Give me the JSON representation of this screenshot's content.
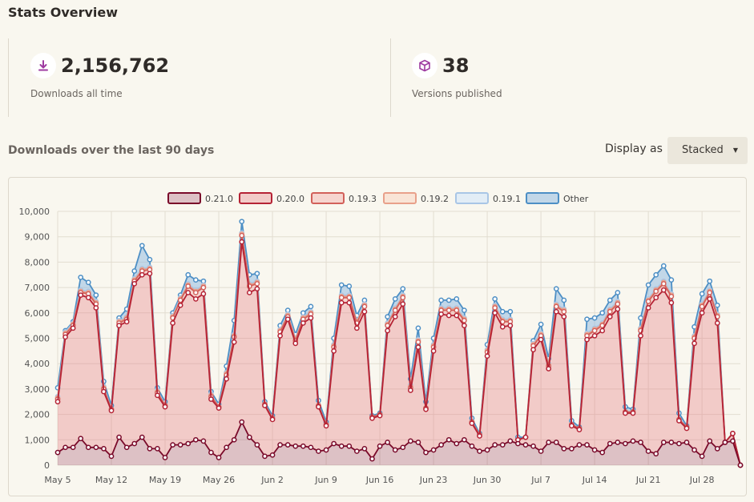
{
  "page": {
    "title": "Stats Overview",
    "downloads_total": "2,156,762",
    "downloads_label": "Downloads all time",
    "versions_count": "38",
    "versions_label": "Versions published",
    "section_title": "Downloads over the last 90 days",
    "display_as_label": "Display as",
    "display_as_value": "Stacked"
  },
  "icons": {
    "downloads": "download-icon",
    "versions": "package-icon",
    "select_arrow": "caret-down-icon"
  },
  "colors": {
    "accent": "#9e3aa0",
    "line_0210": "#7a0a2a",
    "line_0200": "#b52335",
    "line_0193": "#d2605a",
    "line_0192": "#e8a08a",
    "line_0191": "#a9c6e6",
    "line_other": "#4d8fc5"
  },
  "chart_data": {
    "type": "area",
    "stacked": true,
    "ylim": [
      0,
      10000
    ],
    "yticks": [
      "0",
      "1,000",
      "2,000",
      "3,000",
      "4,000",
      "5,000",
      "6,000",
      "7,000",
      "8,000",
      "9,000",
      "10,000"
    ],
    "x_tick_labels": [
      "May 5",
      "May 12",
      "May 19",
      "May 26",
      "Jun 2",
      "Jun 9",
      "Jun 16",
      "Jun 23",
      "Jun 30",
      "Jul 7",
      "Jul 14",
      "Jul 21",
      "Jul 28"
    ],
    "legend": [
      "0.21.0",
      "0.20.0",
      "0.19.3",
      "0.19.2",
      "0.19.1",
      "Other"
    ],
    "legend_placement": "top-center",
    "grid": true,
    "x": [
      "May 5",
      "May 6",
      "May 7",
      "May 8",
      "May 9",
      "May 10",
      "May 11",
      "May 12",
      "May 13",
      "May 14",
      "May 15",
      "May 16",
      "May 17",
      "May 18",
      "May 19",
      "May 20",
      "May 21",
      "May 22",
      "May 23",
      "May 24",
      "May 25",
      "May 26",
      "May 27",
      "May 28",
      "May 29",
      "May 30",
      "May 31",
      "Jun 1",
      "Jun 2",
      "Jun 3",
      "Jun 4",
      "Jun 5",
      "Jun 6",
      "Jun 7",
      "Jun 8",
      "Jun 9",
      "Jun 10",
      "Jun 11",
      "Jun 12",
      "Jun 13",
      "Jun 14",
      "Jun 15",
      "Jun 16",
      "Jun 17",
      "Jun 18",
      "Jun 19",
      "Jun 20",
      "Jun 21",
      "Jun 22",
      "Jun 23",
      "Jun 24",
      "Jun 25",
      "Jun 26",
      "Jun 27",
      "Jun 28",
      "Jun 29",
      "Jun 30",
      "Jul 1",
      "Jul 2",
      "Jul 3",
      "Jul 4",
      "Jul 5",
      "Jul 6",
      "Jul 7",
      "Jul 8",
      "Jul 9",
      "Jul 10",
      "Jul 11",
      "Jul 12",
      "Jul 13",
      "Jul 14",
      "Jul 15",
      "Jul 16",
      "Jul 17",
      "Jul 18",
      "Jul 19",
      "Jul 20",
      "Jul 21",
      "Jul 22",
      "Jul 23",
      "Jul 24",
      "Jul 25",
      "Jul 26",
      "Jul 27",
      "Jul 28",
      "Jul 29",
      "Jul 30",
      "Jul 31",
      "Aug 1",
      "Aug 2"
    ],
    "series": [
      {
        "name": "0.21.0",
        "values": [
          500,
          700,
          700,
          1050,
          700,
          700,
          650,
          350,
          1100,
          700,
          850,
          1100,
          650,
          650,
          300,
          800,
          800,
          850,
          1000,
          950,
          500,
          300,
          700,
          1000,
          1700,
          1100,
          800,
          350,
          400,
          800,
          800,
          750,
          750,
          700,
          550,
          600,
          850,
          750,
          750,
          550,
          650,
          250,
          750,
          900,
          600,
          700,
          950,
          900,
          500,
          600,
          800,
          1000,
          850,
          1000,
          750,
          550,
          600,
          800,
          800,
          950,
          850,
          800,
          750,
          550,
          900,
          900,
          650,
          650,
          800,
          800,
          600,
          500,
          850,
          900,
          850,
          950,
          900,
          550,
          450,
          900,
          900,
          850,
          900,
          600,
          350,
          950,
          650,
          900,
          950,
          0
        ]
      },
      {
        "name": "0.20.0",
        "values": [
          2000,
          4350,
          4700,
          5650,
          5900,
          5500,
          2250,
          1800,
          4400,
          4950,
          6300,
          6400,
          6900,
          2100,
          2000,
          4800,
          5500,
          5950,
          5550,
          5800,
          2100,
          1950,
          2700,
          3850,
          7100,
          5700,
          6150,
          2000,
          1400,
          4300,
          4950,
          4050,
          4850,
          5100,
          1750,
          950,
          3650,
          5650,
          5650,
          4850,
          5400,
          1600,
          1200,
          4400,
          5250,
          5650,
          2000,
          3750,
          1700,
          3900,
          5150,
          4900,
          5050,
          4500,
          900,
          600,
          3700,
          5200,
          4650,
          4550,
          150,
          300,
          3800,
          4400,
          2900,
          5150,
          5200,
          900,
          600,
          4150,
          4500,
          4800,
          5000,
          5250,
          1200,
          1100,
          4200,
          5650,
          6150,
          6000,
          5500,
          900,
          550,
          4200,
          5650,
          5600,
          4950,
          0,
          300,
          0
        ]
      },
      {
        "name": "0.19.3",
        "values": [
          100,
          100,
          100,
          100,
          150,
          150,
          100,
          50,
          100,
          100,
          100,
          150,
          150,
          100,
          50,
          200,
          200,
          250,
          250,
          250,
          100,
          50,
          150,
          200,
          250,
          250,
          200,
          50,
          50,
          150,
          100,
          100,
          150,
          150,
          50,
          50,
          150,
          200,
          200,
          200,
          200,
          50,
          50,
          200,
          250,
          250,
          100,
          200,
          50,
          150,
          150,
          200,
          200,
          200,
          50,
          50,
          150,
          200,
          200,
          150,
          0,
          0,
          150,
          150,
          100,
          200,
          200,
          50,
          50,
          150,
          200,
          200,
          200,
          200,
          50,
          50,
          200,
          250,
          250,
          250,
          250,
          50,
          50,
          200,
          250,
          250,
          250,
          0,
          0,
          0
        ]
      },
      {
        "name": "0.19.2",
        "values": [
          50,
          50,
          50,
          50,
          50,
          50,
          50,
          0,
          50,
          50,
          50,
          50,
          50,
          50,
          0,
          50,
          50,
          50,
          50,
          50,
          50,
          0,
          50,
          50,
          50,
          50,
          50,
          0,
          0,
          50,
          50,
          50,
          50,
          50,
          0,
          0,
          50,
          50,
          50,
          50,
          50,
          0,
          0,
          50,
          50,
          50,
          50,
          50,
          0,
          50,
          50,
          50,
          50,
          50,
          0,
          0,
          50,
          50,
          50,
          50,
          0,
          0,
          50,
          50,
          50,
          50,
          50,
          0,
          0,
          50,
          50,
          50,
          50,
          50,
          0,
          0,
          50,
          50,
          50,
          50,
          50,
          0,
          0,
          50,
          50,
          50,
          50,
          0,
          0,
          0
        ]
      },
      {
        "name": "0.19.1",
        "values": [
          50,
          50,
          50,
          50,
          50,
          50,
          50,
          0,
          50,
          50,
          50,
          50,
          50,
          50,
          0,
          50,
          50,
          50,
          50,
          50,
          50,
          0,
          50,
          50,
          50,
          50,
          50,
          0,
          0,
          50,
          50,
          50,
          50,
          50,
          0,
          0,
          50,
          50,
          50,
          50,
          50,
          0,
          0,
          50,
          50,
          50,
          50,
          50,
          0,
          50,
          50,
          50,
          50,
          50,
          0,
          0,
          50,
          50,
          50,
          50,
          0,
          0,
          50,
          50,
          50,
          50,
          50,
          0,
          0,
          50,
          50,
          50,
          50,
          50,
          0,
          0,
          50,
          50,
          50,
          50,
          50,
          0,
          0,
          50,
          50,
          50,
          50,
          0,
          0,
          0
        ]
      },
      {
        "name": "Other",
        "values": [
          350,
          50,
          50,
          500,
          350,
          250,
          200,
          150,
          100,
          300,
          300,
          900,
          300,
          100,
          150,
          100,
          100,
          350,
          400,
          150,
          100,
          100,
          250,
          550,
          450,
          350,
          300,
          100,
          100,
          150,
          150,
          150,
          150,
          200,
          200,
          100,
          250,
          400,
          350,
          200,
          150,
          50,
          50,
          250,
          350,
          250,
          250,
          450,
          250,
          250,
          300,
          300,
          350,
          300,
          150,
          50,
          200,
          250,
          300,
          300,
          100,
          0,
          100,
          350,
          200,
          600,
          350,
          150,
          50,
          550,
          400,
          400,
          350,
          350,
          200,
          100,
          400,
          550,
          550,
          600,
          550,
          250,
          50,
          350,
          400,
          350,
          350,
          0,
          0,
          0
        ]
      }
    ]
  }
}
